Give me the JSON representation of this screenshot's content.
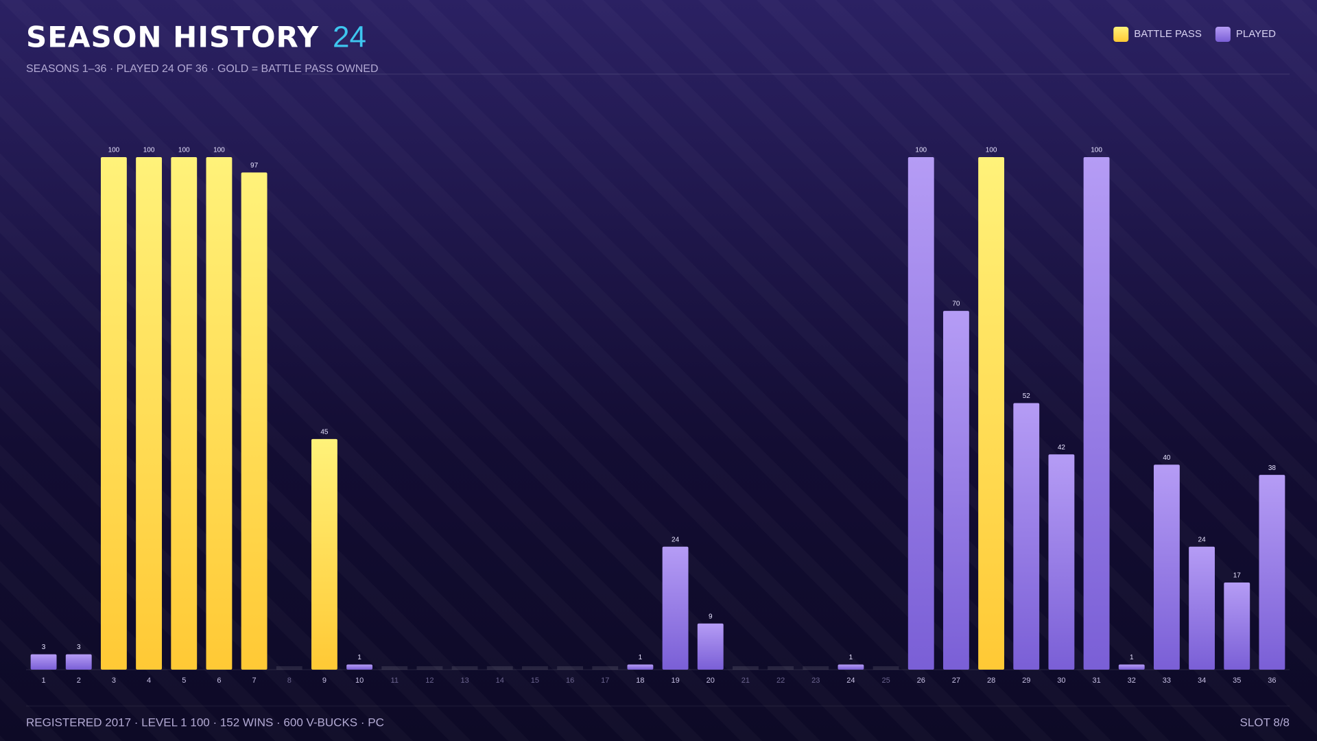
{
  "header": {
    "title": "SEASON HISTORY",
    "count": "24",
    "subtitle": "SEASONS 1–36 · PLAYED 24 OF 36 · GOLD = BATTLE PASS OWNED"
  },
  "chart_data": {
    "type": "bar",
    "stacked": true,
    "legend": "top-right",
    "categories": [
      "1",
      "2",
      "3",
      "4",
      "5",
      "6",
      "7",
      "8",
      "9",
      "10",
      "11",
      "12",
      "13",
      "14",
      "15",
      "16",
      "17",
      "18",
      "19",
      "20",
      "21",
      "22",
      "23",
      "24",
      "25",
      "26",
      "27",
      "28",
      "29",
      "30",
      "31",
      "32",
      "33",
      "34",
      "35",
      "36"
    ],
    "series": [
      {
        "name": "BATTLE PASS",
        "color": "#ffd23f",
        "values": [
          null,
          null,
          100,
          100,
          100,
          100,
          97,
          null,
          45,
          null,
          null,
          null,
          null,
          null,
          null,
          null,
          null,
          null,
          null,
          null,
          null,
          null,
          null,
          null,
          null,
          null,
          null,
          100,
          null,
          null,
          null,
          null,
          null,
          null,
          null,
          null
        ]
      },
      {
        "name": "PLAYED",
        "color": "#9b7fe6",
        "values": [
          3,
          3,
          null,
          null,
          null,
          null,
          null,
          null,
          null,
          1,
          null,
          null,
          null,
          null,
          null,
          null,
          null,
          1,
          24,
          9,
          null,
          null,
          null,
          1,
          null,
          100,
          70,
          null,
          52,
          42,
          100,
          1,
          40,
          24,
          17,
          38
        ]
      }
    ],
    "ylim": [
      0,
      100
    ]
  },
  "footer": {
    "stats": "REGISTERED 2017 · LEVEL 1 100 · 152 WINS · 600 V-BUCKS · PC",
    "slot": "SLOT 8/8"
  }
}
